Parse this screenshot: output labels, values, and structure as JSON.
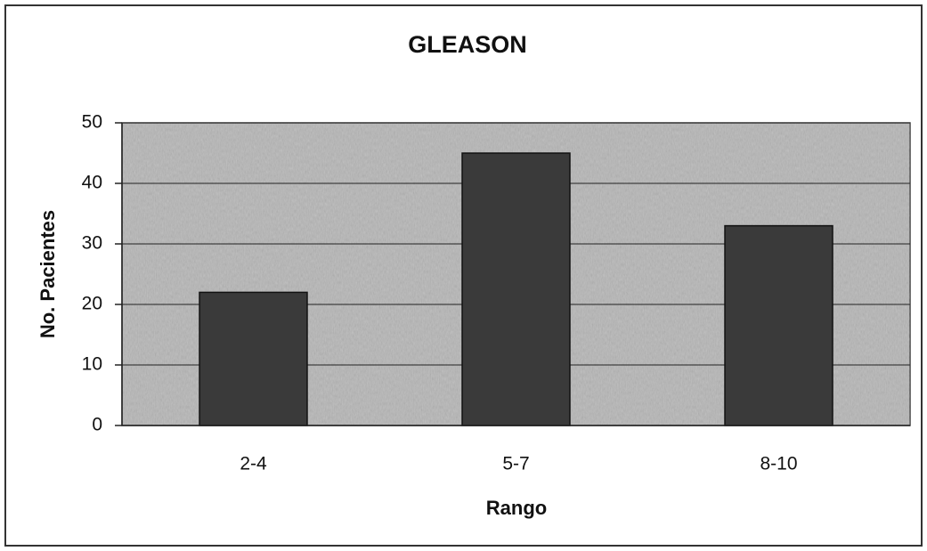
{
  "chart_data": {
    "type": "bar",
    "title": "GLEASON",
    "x_label": "Rango",
    "y_label": "No. Pacientes",
    "categories": [
      "2-4",
      "5-7",
      "8-10"
    ],
    "values": [
      22,
      45,
      33
    ],
    "color": "#3a3a3a",
    "plot_background": "#b5b5b5",
    "ylim": [
      0,
      50
    ],
    "yticks": [
      0,
      10,
      20,
      30,
      40,
      50
    ],
    "grid": true
  }
}
